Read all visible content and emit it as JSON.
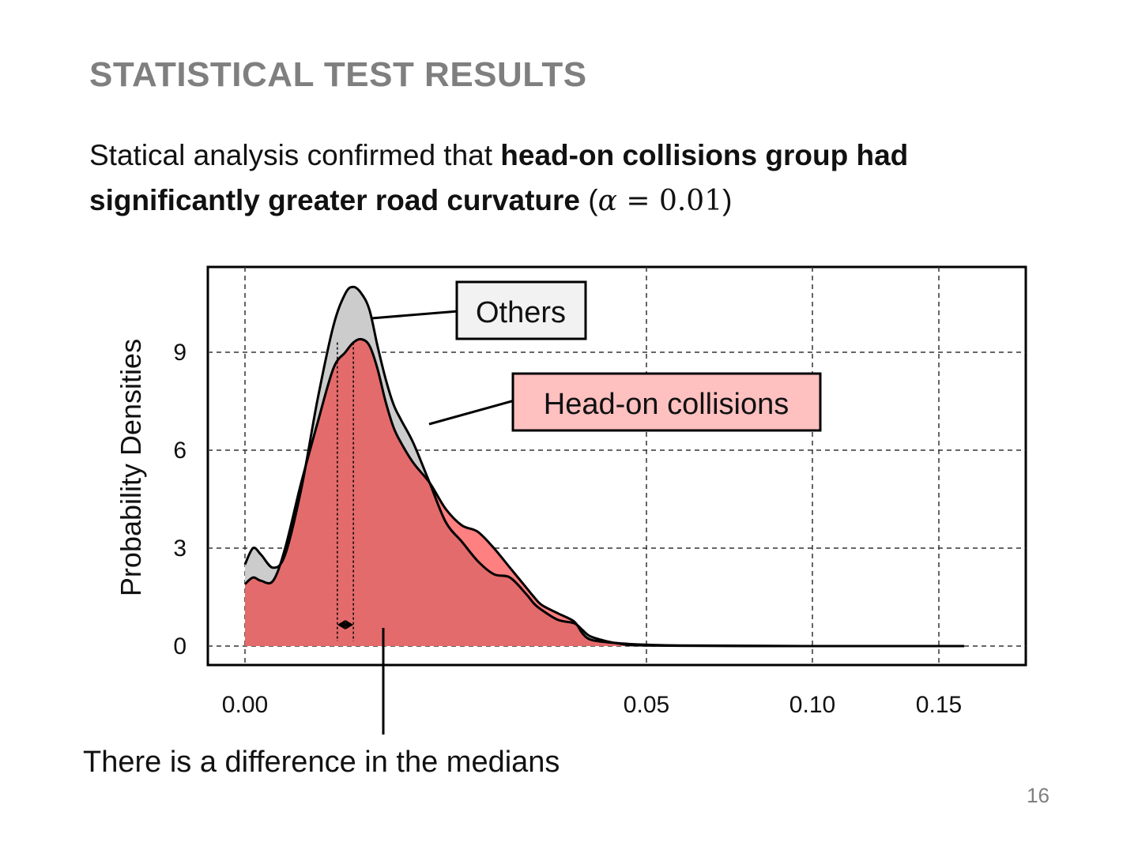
{
  "slide": {
    "title": "STATISTICAL TEST RESULTS",
    "body_plain": "Statical analysis confirmed that ",
    "body_bold": "head-on collisions group had significantly greater road curvature",
    "math_open": " (",
    "math_alpha": "α",
    "math_rest": " = 0.01",
    "math_close": ")",
    "annotation": "There is a difference in the medians",
    "page_number": "16"
  },
  "colors": {
    "others_fill": "#cccccc",
    "head_on_fill": "#ff8080",
    "overlap_fill": "#e46b6b",
    "others_label_bg": "#f2f2f2",
    "head_on_label_bg": "#ffc0c0",
    "outline": "#000000"
  },
  "chart_data": {
    "type": "area",
    "title": "",
    "xlabel": "",
    "ylabel": "Probability Densities",
    "x_axis_scale": "nonlinear (ticks unevenly spaced)",
    "x_ticks": [
      "0.00",
      "0.05",
      "0.10",
      "0.15"
    ],
    "x_tick_values": [
      0.0,
      0.05,
      0.1,
      0.15
    ],
    "y_ticks": [
      "0",
      "3",
      "6",
      "9"
    ],
    "y_tick_values": [
      0,
      3,
      6,
      9
    ],
    "ylim": [
      -0.6,
      11.5
    ],
    "grid": true,
    "grid_style": "dashed",
    "legend": "callout labels",
    "series": [
      {
        "name": "Others",
        "x": [
          0.0,
          0.001,
          0.002,
          0.0035,
          0.005,
          0.007,
          0.009,
          0.011,
          0.0125,
          0.0135,
          0.0145,
          0.0155,
          0.0165,
          0.0175,
          0.0185,
          0.0195,
          0.021,
          0.023,
          0.025,
          0.027,
          0.029,
          0.031,
          0.033,
          0.035,
          0.036,
          0.037,
          0.039,
          0.041,
          0.042,
          0.043,
          0.045,
          0.047,
          0.048,
          0.05,
          0.06,
          0.08,
          0.1,
          0.12,
          0.15,
          0.16
        ],
        "values": [
          2.5,
          3.0,
          2.8,
          2.4,
          2.8,
          4.8,
          7.5,
          9.8,
          10.8,
          11.0,
          10.8,
          10.3,
          9.2,
          8.2,
          7.4,
          6.9,
          6.2,
          5.0,
          3.8,
          3.2,
          2.6,
          2.2,
          2.1,
          1.6,
          1.3,
          1.1,
          0.8,
          0.7,
          0.5,
          0.3,
          0.15,
          0.06,
          0.03,
          0.02,
          0.01,
          0.0,
          0.0,
          0.0,
          0.0,
          0.0
        ]
      },
      {
        "name": "Head-on collisions",
        "x": [
          0.0,
          0.001,
          0.002,
          0.0035,
          0.005,
          0.007,
          0.009,
          0.011,
          0.0125,
          0.0135,
          0.0145,
          0.0155,
          0.0165,
          0.0175,
          0.0185,
          0.0195,
          0.021,
          0.023,
          0.025,
          0.027,
          0.029,
          0.031,
          0.033,
          0.035,
          0.036,
          0.037,
          0.039,
          0.041,
          0.042,
          0.043,
          0.045,
          0.047,
          0.048,
          0.05,
          0.06,
          0.08,
          0.1,
          0.12,
          0.15,
          0.16
        ],
        "values": [
          1.9,
          2.1,
          2.0,
          2.0,
          3.0,
          5.0,
          6.8,
          8.5,
          9.0,
          9.3,
          9.4,
          9.2,
          8.5,
          7.5,
          6.7,
          6.2,
          5.6,
          5.0,
          4.2,
          3.7,
          3.5,
          3.0,
          2.4,
          1.8,
          1.5,
          1.25,
          1.0,
          0.75,
          0.4,
          0.2,
          0.12,
          0.08,
          0.06,
          0.04,
          0.02,
          0.01,
          0.0,
          0.0,
          0.0,
          0.0
        ]
      }
    ],
    "median_markers": [
      0.0115,
      0.0135
    ]
  }
}
